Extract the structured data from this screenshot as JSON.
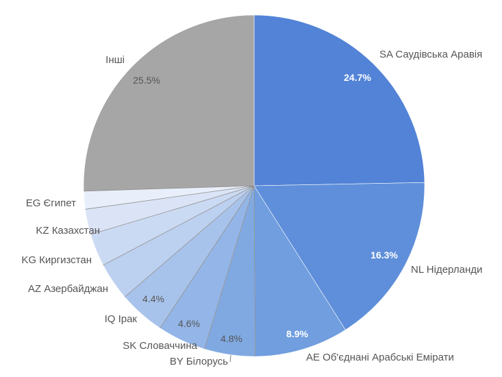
{
  "chart_data": {
    "type": "pie",
    "title": "",
    "slices": [
      {
        "label": "SA Саудівська Аравія",
        "value": 24.7,
        "value_label": "24.7%",
        "color": "#5283d7"
      },
      {
        "label": "NL Нідерланди",
        "value": 16.3,
        "value_label": "16.3%",
        "color": "#5f8fda"
      },
      {
        "label": "AE Об'єднані Арабські Емірати",
        "value": 8.9,
        "value_label": "8.9%",
        "color": "#709edf"
      },
      {
        "label": "BY Білорусь",
        "value": 4.8,
        "value_label": "4.8%",
        "color": "#80a9e2"
      },
      {
        "label": "SK Словаччина",
        "value": 4.6,
        "value_label": "4.6%",
        "color": "#93b5e7"
      },
      {
        "label": "IQ Ірак",
        "value": 4.4,
        "value_label": "4.4%",
        "color": "#a8c3eb"
      },
      {
        "label": "AZ Азербайджан",
        "value": 3.6,
        "value_label": "",
        "color": "#bcd0f0"
      },
      {
        "label": "KG Киргизстан",
        "value": 3.1,
        "value_label": "",
        "color": "#cbdaf3"
      },
      {
        "label": "KZ Казахстан",
        "value": 2.4,
        "value_label": "",
        "color": "#dae4f6"
      },
      {
        "label": "EG Єгипет",
        "value": 1.7,
        "value_label": "",
        "color": "#e9effa"
      },
      {
        "label": "Інші",
        "value": 25.5,
        "value_label": "25.5%",
        "color": "#a6a6a6"
      }
    ]
  }
}
